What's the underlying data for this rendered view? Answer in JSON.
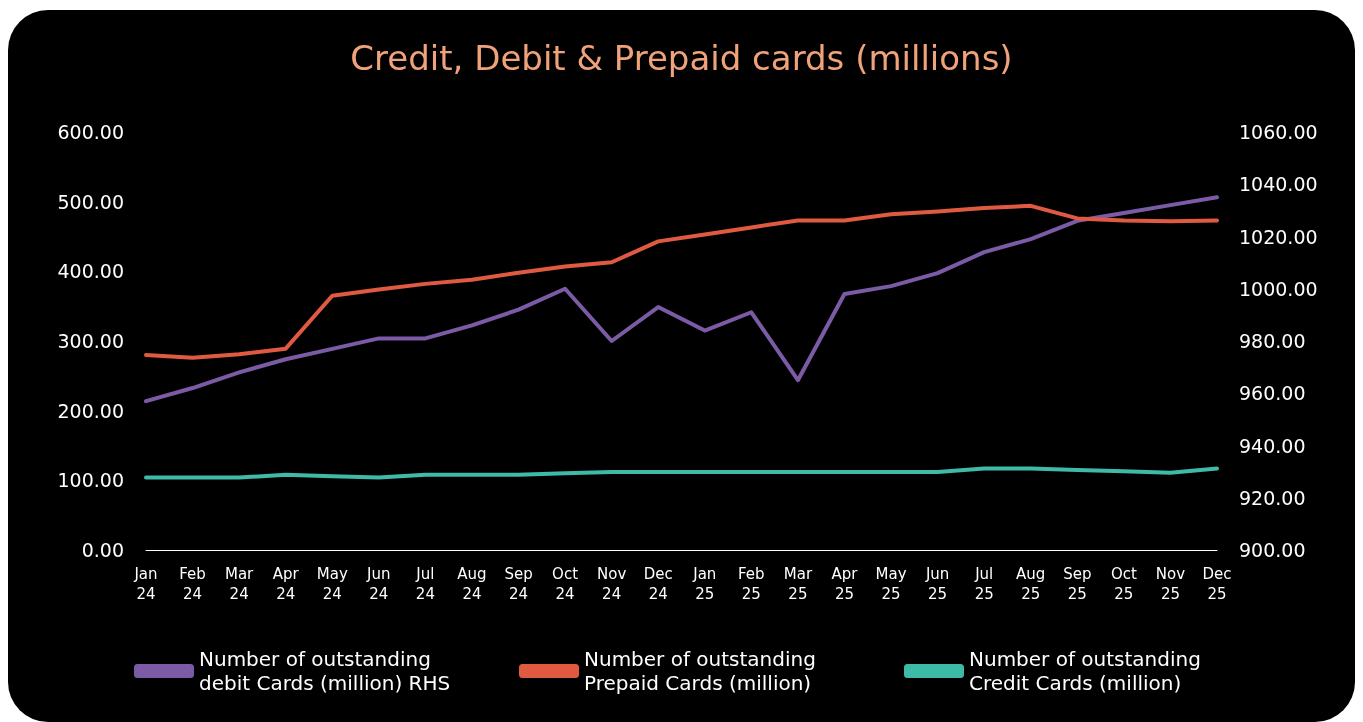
{
  "chart_data": {
    "type": "line",
    "title": "Credit, Debit & Prepaid cards (millions)",
    "categories": [
      "Jan 24",
      "Feb 24",
      "Mar 24",
      "Apr 24",
      "May 24",
      "Jun 24",
      "Jul 24",
      "Aug 24",
      "Sep 24",
      "Oct 24",
      "Nov 24",
      "Dec 24",
      "Jan 25",
      "Feb 25",
      "Mar 25",
      "Apr 25",
      "May 25",
      "Jun 25",
      "Jul 25",
      "Aug 25",
      "Sep 25",
      "Oct 25",
      "Nov 25",
      "Dec 25"
    ],
    "series": [
      {
        "name": "Number of outstanding debit Cards (million) RHS",
        "color": "#7b5ba6",
        "axis": "y2",
        "values": [
          957,
          962,
          968,
          973,
          977,
          981,
          981,
          986,
          992,
          1000,
          980,
          993,
          984,
          991,
          965,
          998,
          1001,
          1006,
          1014,
          1019,
          1026,
          1029,
          1032,
          1035
        ]
      },
      {
        "name": "Number of outstanding Prepaid Cards (million)",
        "color": "#e05a42",
        "values": [
          280,
          276,
          281,
          289,
          365,
          374,
          382,
          388,
          398,
          407,
          413,
          443,
          453,
          463,
          473,
          473,
          482,
          486,
          491,
          494,
          476,
          473,
          472,
          473
        ]
      },
      {
        "name": "Number of outstanding Credit Cards (million)",
        "color": "#3dbba6",
        "values": [
          104,
          104,
          104,
          108,
          106,
          104,
          108,
          108,
          108,
          110,
          112,
          112,
          112,
          112,
          112,
          112,
          112,
          112,
          117,
          117,
          115,
          113,
          111,
          117
        ]
      }
    ],
    "ylim": [
      0,
      600
    ],
    "yticks": [
      {
        "value": 0,
        "label": "0.00"
      },
      {
        "value": 100,
        "label": "100.00"
      },
      {
        "value": 200,
        "label": "200.00"
      },
      {
        "value": 300,
        "label": "300.00"
      },
      {
        "value": 400,
        "label": "400.00"
      },
      {
        "value": 500,
        "label": "500.00"
      },
      {
        "value": 600,
        "label": "600.00"
      }
    ],
    "y2lim": [
      900,
      1060
    ],
    "y2ticks": [
      {
        "value": 900,
        "label": "900.00"
      },
      {
        "value": 920,
        "label": "920.00"
      },
      {
        "value": 940,
        "label": "940.00"
      },
      {
        "value": 960,
        "label": "960.00"
      },
      {
        "value": 980,
        "label": "980.00"
      },
      {
        "value": 1000,
        "label": "1000.00"
      },
      {
        "value": 1020,
        "label": "1020.00"
      },
      {
        "value": 1040,
        "label": "1040.00"
      },
      {
        "value": 1060,
        "label": "1060.00"
      }
    ],
    "grid": false,
    "legend": "bottom",
    "marker": "none",
    "line_style": "solid"
  }
}
